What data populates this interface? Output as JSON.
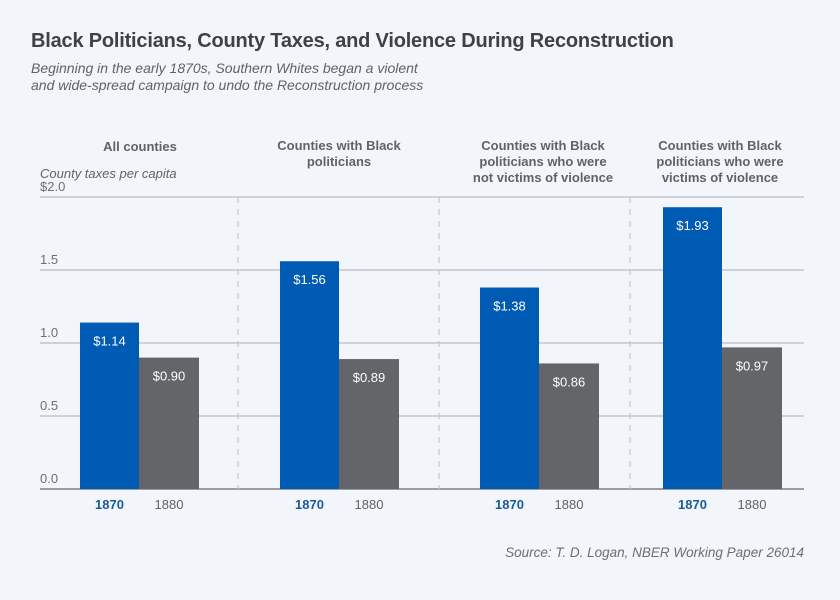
{
  "header": {
    "title": "Black Politicians, County Taxes, and Violence During Reconstruction",
    "subtitle_line1": "Beginning in the early 1870s, Southern Whites began a violent",
    "subtitle_line2": "and wide-spread campaign to undo the Reconstruction process"
  },
  "source": "Source: T. D. Logan, NBER Working Paper 26014",
  "colors": {
    "1870": "#005bb5",
    "1880": "#646569",
    "year_1870_label": "#1a5a9a",
    "year_1880_label": "#5f6368"
  },
  "chart_data": {
    "type": "bar",
    "title": "Black Politicians, County Taxes, and Violence During Reconstruction",
    "ylabel": "County taxes per capita",
    "xlabel": "",
    "ylim": [
      0,
      2.0
    ],
    "yticks": [
      0.0,
      0.5,
      1.0,
      1.5,
      2.0
    ],
    "ytick_labels": [
      "0.0",
      "0.5",
      "1.0",
      "1.5",
      "$2.0"
    ],
    "grid": true,
    "categories": [
      [
        "All counties"
      ],
      [
        "Counties with Black",
        "politicians"
      ],
      [
        "Counties with Black",
        "politicians who were",
        "not victims of violence"
      ],
      [
        "Counties with Black",
        "politicians who were",
        "victims of violence"
      ]
    ],
    "series": [
      {
        "name": "1870",
        "values": [
          1.14,
          1.56,
          1.38,
          1.93
        ],
        "labels": [
          "$1.14",
          "$1.56",
          "$1.38",
          "$1.93"
        ]
      },
      {
        "name": "1880",
        "values": [
          0.9,
          0.89,
          0.86,
          0.97
        ],
        "labels": [
          "$0.90",
          "$0.89",
          "$0.86",
          "$0.97"
        ]
      }
    ]
  }
}
